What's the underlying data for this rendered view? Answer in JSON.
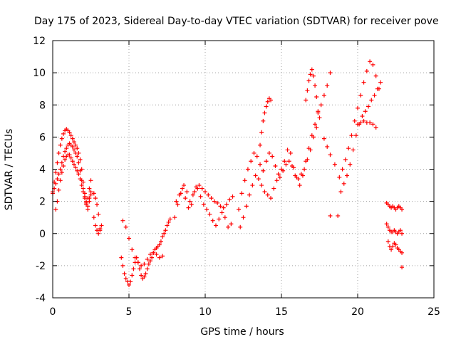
{
  "colors": {
    "series": "#ff0000",
    "background": "#ffffff",
    "axis": "#000000",
    "grid": "#a0a0a0"
  },
  "chart_data": {
    "type": "scatter",
    "title": "Day 175 of 2023, Sidereal Day-to-day VTEC variation (SDTVAR) for receiver pove",
    "xlabel": "GPS time / hours",
    "ylabel": "SDTVAR / TECUs",
    "xlim": [
      0,
      25
    ],
    "ylim": [
      -4,
      12
    ],
    "xticks": [
      0,
      5,
      10,
      15,
      20,
      25
    ],
    "yticks": [
      -4,
      -2,
      0,
      2,
      4,
      6,
      8,
      10,
      12
    ],
    "grid": true,
    "marker": "plus",
    "series": [
      {
        "name": "SDTVAR",
        "x": [
          0.0,
          0.1,
          0.2,
          0.3,
          0.4,
          0.5,
          0.6,
          0.7,
          0.8,
          0.9,
          1.0,
          1.1,
          1.2,
          1.3,
          1.4,
          1.5,
          1.6,
          1.7,
          1.8,
          1.9,
          2.0,
          2.1,
          2.2,
          2.3,
          2.4,
          2.5,
          0.0,
          0.1,
          0.2,
          0.3,
          0.4,
          0.5,
          0.6,
          0.7,
          0.8,
          0.9,
          1.0,
          1.1,
          1.2,
          1.3,
          1.4,
          1.5,
          1.6,
          1.7,
          1.8,
          1.9,
          2.0,
          2.1,
          2.2,
          2.3,
          2.4,
          2.5,
          0.2,
          0.3,
          0.4,
          0.5,
          0.6,
          0.7,
          0.8,
          0.9,
          1.0,
          1.1,
          1.2,
          1.3,
          1.4,
          1.5,
          1.6,
          1.7,
          1.8,
          1.9,
          2.0,
          2.1,
          2.2,
          2.3,
          2.4,
          2.5,
          2.7,
          2.8,
          2.9,
          3.0,
          3.1,
          3.2,
          2.7,
          2.8,
          2.9,
          3.0,
          3.1,
          4.5,
          4.6,
          4.7,
          4.8,
          4.9,
          5.0,
          5.1,
          5.2,
          5.3,
          5.4,
          5.5,
          5.6,
          5.7,
          5.8,
          5.9,
          6.0,
          6.1,
          6.2,
          6.3,
          6.4,
          6.5,
          6.6,
          6.7,
          6.8,
          6.9,
          7.0,
          7.1,
          7.2,
          7.3,
          7.4,
          7.5,
          7.6,
          7.7,
          4.6,
          4.8,
          5.0,
          5.2,
          5.4,
          5.6,
          5.8,
          6.0,
          6.2,
          6.4,
          6.6,
          6.8,
          7.0,
          7.2,
          8.0,
          8.2,
          8.4,
          8.6,
          8.8,
          9.0,
          9.2,
          9.4,
          9.6,
          9.8,
          10.0,
          10.2,
          10.4,
          10.6,
          10.8,
          11.0,
          11.2,
          11.4,
          11.6,
          11.8,
          8.1,
          8.3,
          8.5,
          8.7,
          8.9,
          9.1,
          9.3,
          9.5,
          9.7,
          9.9,
          10.1,
          10.3,
          10.5,
          10.7,
          10.9,
          11.1,
          11.3,
          11.5,
          11.7,
          12.2,
          12.4,
          12.6,
          12.8,
          13.0,
          13.2,
          13.4,
          13.6,
          13.8,
          14.0,
          14.2,
          14.4,
          14.6,
          14.8,
          15.0,
          15.2,
          15.4,
          15.6,
          15.8,
          16.0,
          16.2,
          16.4,
          16.6,
          16.8,
          17.0,
          17.2,
          17.4,
          17.6,
          17.8,
          18.0,
          18.2,
          12.3,
          12.5,
          12.7,
          12.9,
          13.1,
          13.3,
          13.5,
          13.7,
          13.9,
          14.1,
          14.3,
          14.5,
          14.7,
          14.9,
          15.1,
          15.3,
          15.5,
          15.7,
          15.9,
          16.1,
          16.3,
          16.5,
          16.7,
          16.9,
          17.1,
          17.3,
          17.5,
          13.6,
          13.7,
          13.8,
          13.9,
          14.0,
          14.1,
          14.2,
          14.3,
          16.6,
          16.7,
          16.8,
          16.9,
          17.0,
          17.1,
          17.2,
          17.3,
          17.4,
          17.8,
          18.0,
          18.2,
          18.5,
          18.7,
          18.9,
          19.1,
          19.3,
          19.5,
          19.7,
          19.9,
          20.1,
          20.3,
          20.5,
          20.7,
          20.9,
          21.1,
          21.3,
          21.5,
          18.8,
          19.0,
          19.2,
          19.4,
          19.6,
          19.8,
          20.0,
          20.2,
          20.4,
          20.6,
          20.8,
          21.0,
          21.2,
          21.4,
          20.0,
          20.2,
          20.4,
          20.6,
          20.8,
          21.0,
          21.2,
          21.9,
          22.0,
          22.1,
          22.2,
          22.3,
          22.4,
          22.5,
          22.6,
          22.7,
          22.8,
          22.9,
          21.9,
          22.0,
          22.1,
          22.2,
          22.3,
          22.4,
          22.5,
          22.6,
          22.7,
          22.8,
          22.9,
          22.0,
          22.1,
          22.2,
          22.3,
          22.4,
          22.5,
          22.6,
          22.7,
          22.8,
          22.9,
          18.2,
          22.9
        ],
        "y": [
          2.6,
          3.2,
          3.8,
          4.4,
          5.0,
          5.5,
          5.9,
          6.2,
          6.4,
          6.5,
          6.4,
          6.3,
          6.1,
          5.9,
          5.7,
          5.5,
          5.3,
          5.0,
          4.6,
          4.0,
          3.2,
          2.5,
          1.8,
          1.5,
          2.0,
          2.4,
          2.5,
          2.8,
          3.1,
          3.4,
          3.7,
          4.0,
          4.4,
          4.8,
          5.1,
          5.3,
          5.5,
          5.6,
          5.5,
          5.4,
          5.2,
          5.0,
          4.8,
          4.4,
          3.9,
          3.3,
          2.8,
          2.3,
          2.0,
          1.7,
          2.2,
          2.6,
          1.5,
          2.0,
          2.7,
          3.3,
          3.8,
          4.2,
          4.6,
          4.8,
          4.9,
          4.9,
          4.7,
          4.5,
          4.3,
          4.1,
          3.9,
          3.7,
          3.4,
          3.0,
          2.6,
          2.2,
          1.9,
          2.2,
          2.8,
          3.3,
          1.0,
          0.5,
          0.2,
          0.0,
          0.2,
          0.5,
          2.5,
          2.2,
          1.8,
          1.2,
          0.3,
          -1.5,
          -2.0,
          -2.5,
          -2.8,
          -3.0,
          -3.2,
          -3.0,
          -2.6,
          -2.2,
          -1.8,
          -1.5,
          -1.8,
          -2.2,
          -2.6,
          -2.8,
          -2.7,
          -2.5,
          -2.2,
          -1.9,
          -1.7,
          -1.5,
          -1.2,
          -1.0,
          -0.9,
          -0.8,
          -0.7,
          -0.5,
          -0.2,
          0.0,
          0.2,
          0.5,
          0.7,
          0.9,
          0.8,
          0.4,
          -0.3,
          -1.0,
          -1.5,
          -1.8,
          -2.0,
          -1.9,
          -1.6,
          -1.3,
          -1.2,
          -1.3,
          -1.5,
          -1.4,
          1.0,
          1.8,
          2.5,
          3.0,
          2.6,
          2.0,
          2.4,
          2.9,
          3.0,
          2.8,
          2.6,
          2.4,
          2.2,
          2.0,
          1.9,
          1.7,
          1.6,
          1.8,
          2.1,
          2.3,
          2.0,
          2.4,
          2.8,
          2.2,
          1.6,
          1.8,
          2.6,
          2.8,
          2.3,
          1.8,
          1.5,
          1.2,
          0.8,
          0.5,
          0.9,
          1.3,
          1.0,
          0.4,
          0.6,
          1.5,
          2.5,
          3.3,
          4.0,
          4.5,
          5.0,
          4.8,
          4.3,
          3.9,
          4.5,
          5.0,
          4.8,
          4.2,
          3.7,
          4.0,
          4.5,
          5.2,
          5.0,
          4.1,
          3.5,
          3.0,
          3.6,
          4.5,
          5.3,
          6.1,
          6.8,
          7.5,
          8.0,
          8.6,
          9.2,
          10.0,
          0.4,
          1.0,
          1.7,
          2.4,
          3.0,
          3.6,
          3.4,
          3.0,
          2.6,
          2.4,
          2.2,
          2.8,
          3.3,
          3.5,
          3.9,
          4.3,
          4.5,
          4.2,
          3.6,
          3.4,
          3.7,
          4.0,
          4.6,
          5.2,
          6.0,
          6.6,
          7.2,
          5.5,
          6.3,
          7.0,
          7.5,
          7.9,
          8.2,
          8.4,
          8.3,
          8.3,
          8.9,
          9.5,
          9.9,
          10.2,
          9.8,
          9.2,
          8.5,
          7.6,
          5.9,
          5.4,
          4.9,
          4.3,
          1.1,
          2.6,
          3.1,
          3.6,
          4.3,
          5.2,
          6.1,
          6.8,
          7.3,
          7.6,
          7.9,
          8.3,
          8.6,
          9.0,
          9.4,
          3.5,
          4.0,
          4.6,
          5.3,
          6.1,
          7.0,
          7.8,
          8.6,
          9.4,
          10.1,
          10.7,
          10.5,
          9.8,
          9.0,
          6.8,
          6.9,
          7.0,
          6.9,
          6.9,
          6.8,
          6.6,
          1.9,
          1.8,
          1.7,
          1.6,
          1.7,
          1.6,
          1.5,
          1.6,
          1.7,
          1.6,
          1.5,
          0.6,
          0.4,
          0.2,
          0.1,
          0.1,
          0.2,
          0.1,
          0.0,
          0.1,
          0.2,
          0.0,
          -0.5,
          -0.8,
          -1.0,
          -0.8,
          -0.6,
          -0.7,
          -0.9,
          -1.0,
          -1.1,
          -1.2,
          1.1,
          -2.1
        ]
      }
    ]
  }
}
